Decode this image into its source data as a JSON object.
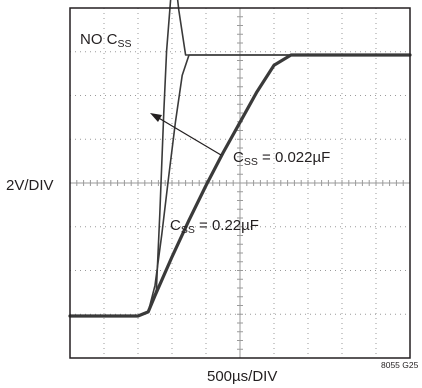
{
  "chart_data": {
    "type": "line",
    "title": "",
    "xlabel": "500µs/DIV",
    "ylabel": "2V/DIV",
    "figure_id": "8055 G25",
    "divisions": {
      "x": 10,
      "y": 8
    },
    "x_unit": "µs",
    "y_unit": "V",
    "xlim": [
      0,
      5000
    ],
    "ylim": [
      0,
      16
    ],
    "grid": true,
    "grid_style": "dotted",
    "colors": {
      "trace": "#3a3a3a",
      "frame": "#231f20",
      "grid": "#9a9a9a"
    },
    "series": [
      {
        "label_prefix": "NO C",
        "label_sub": "SS",
        "label_suffix": "",
        "x": [
          0,
          250,
          500,
          750,
          1000,
          1150,
          1270,
          1320,
          1380,
          1420,
          1480,
          1550,
          1600,
          1700,
          1800,
          2500,
          3500,
          5000
        ],
        "y": [
          0.0,
          0.0,
          0.0,
          0.0,
          0.0,
          0.2,
          1.3,
          5.0,
          10.0,
          13.0,
          15.5,
          16.5,
          15.0,
          12.8,
          12.8,
          12.8,
          12.8,
          12.8
        ]
      },
      {
        "label_prefix": "C",
        "label_sub": "SS",
        "label_suffix": " = 0.022µF",
        "x": [
          0,
          1000,
          1150,
          1250,
          1350,
          1450,
          1550,
          1650,
          1750,
          1800,
          3000,
          5000
        ],
        "y": [
          0.0,
          0.0,
          0.2,
          1.5,
          4.0,
          6.8,
          9.5,
          11.8,
          12.8,
          12.8,
          12.8,
          12.8
        ]
      },
      {
        "label_prefix": "C",
        "label_sub": "SS",
        "label_suffix": " = 0.22µF",
        "x": [
          0,
          1000,
          1150,
          1250,
          1500,
          1750,
          2000,
          2250,
          2500,
          2750,
          3000,
          3250,
          3500,
          4000,
          5000
        ],
        "y": [
          0.0,
          0.0,
          0.2,
          1.0,
          2.9,
          4.7,
          6.4,
          8.0,
          9.5,
          11.0,
          12.3,
          12.8,
          12.8,
          12.8,
          12.8
        ]
      }
    ]
  }
}
